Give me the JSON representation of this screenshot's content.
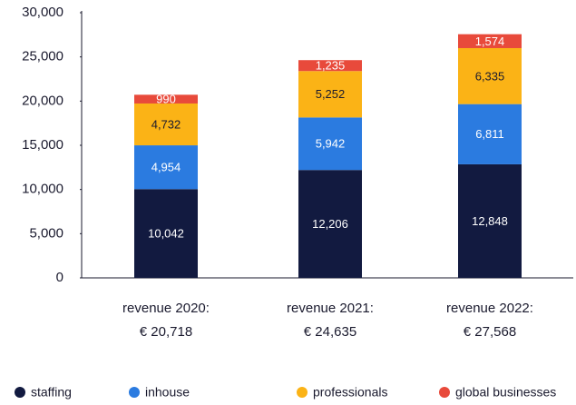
{
  "chart_data": {
    "type": "stacked_bar",
    "categories": [
      "revenue 2020:",
      "revenue 2021:",
      "revenue 2022:"
    ],
    "total_labels": [
      "€ 20,718",
      "€ 24,635",
      "€ 27,568"
    ],
    "series": [
      {
        "name": "staffing",
        "color": "#121a40",
        "values": [
          10042,
          12206,
          12848
        ],
        "value_labels": [
          "10,042",
          "12,206",
          "12,848"
        ]
      },
      {
        "name": "inhouse",
        "color": "#2b7be0",
        "values": [
          4954,
          5942,
          6811
        ],
        "value_labels": [
          "4,954",
          "5,942",
          "6,811"
        ]
      },
      {
        "name": "professionals",
        "color": "#fbb316",
        "values": [
          4732,
          5252,
          6335
        ],
        "value_labels": [
          "4,732",
          "5,252",
          "6,335"
        ]
      },
      {
        "name": "global businesses",
        "color": "#e84a3b",
        "values": [
          990,
          1235,
          1574
        ],
        "value_labels": [
          "990",
          "1,235",
          "1,574"
        ]
      }
    ],
    "ylim": [
      0,
      30000
    ],
    "yticks": [
      {
        "value": 0,
        "label": "0"
      },
      {
        "value": 5000,
        "label": "5,000"
      },
      {
        "value": 10000,
        "label": "10,000"
      },
      {
        "value": 15000,
        "label": "15,000"
      },
      {
        "value": 20000,
        "label": "20,000"
      },
      {
        "value": 25000,
        "label": "25,000"
      },
      {
        "value": 30000,
        "label": "30,000"
      }
    ],
    "grid": false
  }
}
